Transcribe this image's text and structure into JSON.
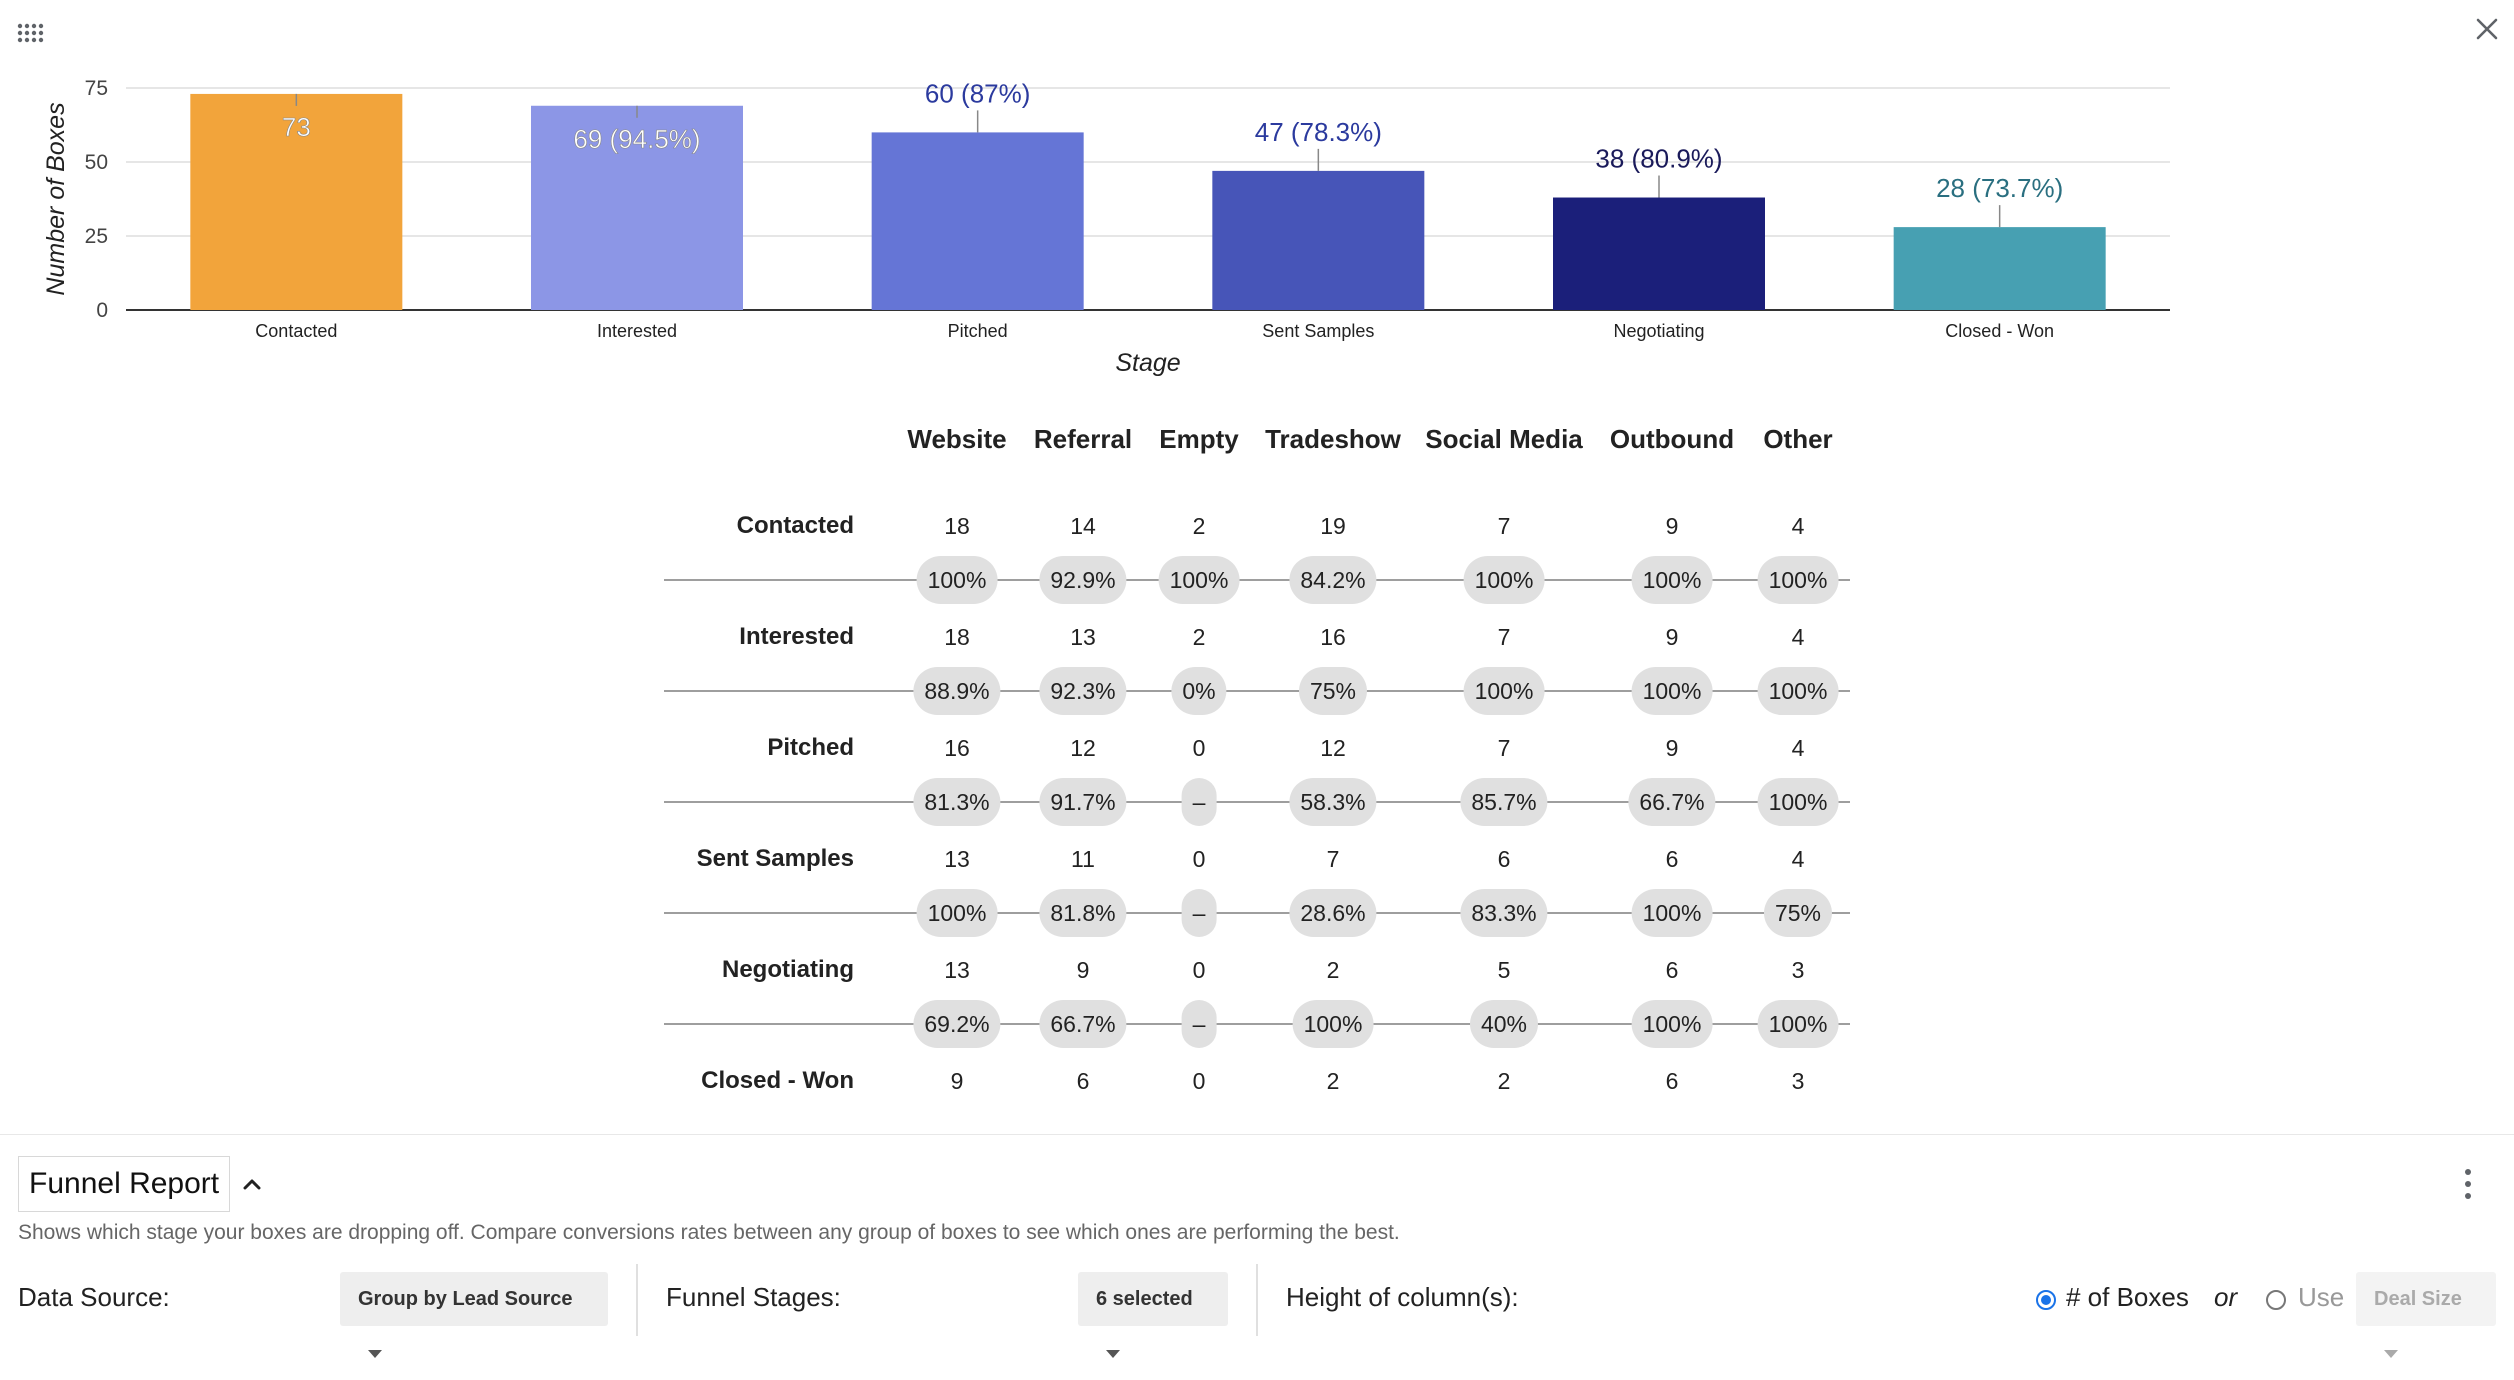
{
  "icons": {
    "apps": "apps-grid-icon",
    "close": "close-icon",
    "collapse": "chevron-up-icon",
    "more": "more-vert-icon"
  },
  "chart_data": {
    "type": "bar",
    "title": "",
    "xlabel": "Stage",
    "ylabel": "Number of Boxes",
    "ylim": [
      0,
      75
    ],
    "yticks": [
      0,
      25,
      50,
      75
    ],
    "categories": [
      "Contacted",
      "Interested",
      "Pitched",
      "Sent Samples",
      "Negotiating",
      "Closed - Won"
    ],
    "values": [
      73,
      69,
      60,
      47,
      38,
      28
    ],
    "labels": [
      "73",
      "69 (94.5%)",
      "60 (87%)",
      "47 (78.3%)",
      "38 (80.9%)",
      "28 (73.7%)"
    ],
    "colors": [
      "#f2a43b",
      "#8c96e6",
      "#6575d6",
      "#4755b8",
      "#1b1f7a",
      "#47a0b2"
    ],
    "label_colors": [
      "#ffffff",
      "#ffffff",
      "#2b3a9e",
      "#2b3a9e",
      "#1a1a5a",
      "#2a6f80"
    ],
    "label_inside": [
      true,
      true,
      false,
      false,
      false,
      false
    ]
  },
  "matrix": {
    "columns": [
      "Website",
      "Referral",
      "Empty",
      "Tradeshow",
      "Social Media",
      "Outbound",
      "Other"
    ],
    "rows": [
      {
        "stage": "Contacted",
        "counts": [
          "18",
          "14",
          "2",
          "19",
          "7",
          "9",
          "4"
        ],
        "rates": [
          "100%",
          "92.9%",
          "100%",
          "84.2%",
          "100%",
          "100%",
          "100%"
        ]
      },
      {
        "stage": "Interested",
        "counts": [
          "18",
          "13",
          "2",
          "16",
          "7",
          "9",
          "4"
        ],
        "rates": [
          "88.9%",
          "92.3%",
          "0%",
          "75%",
          "100%",
          "100%",
          "100%"
        ]
      },
      {
        "stage": "Pitched",
        "counts": [
          "16",
          "12",
          "0",
          "12",
          "7",
          "9",
          "4"
        ],
        "rates": [
          "81.3%",
          "91.7%",
          "–",
          "58.3%",
          "85.7%",
          "66.7%",
          "100%"
        ]
      },
      {
        "stage": "Sent Samples",
        "counts": [
          "13",
          "11",
          "0",
          "7",
          "6",
          "6",
          "4"
        ],
        "rates": [
          "100%",
          "81.8%",
          "–",
          "28.6%",
          "83.3%",
          "100%",
          "75%"
        ]
      },
      {
        "stage": "Negotiating",
        "counts": [
          "13",
          "9",
          "0",
          "2",
          "5",
          "6",
          "3"
        ],
        "rates": [
          "69.2%",
          "66.7%",
          "–",
          "100%",
          "40%",
          "100%",
          "100%"
        ]
      },
      {
        "stage": "Closed - Won",
        "counts": [
          "9",
          "6",
          "0",
          "2",
          "2",
          "6",
          "3"
        ],
        "rates": []
      }
    ]
  },
  "report": {
    "title": "Funnel Report",
    "description": "Shows which stage your boxes are dropping off. Compare conversions rates between any group of boxes to see which ones are performing the best."
  },
  "controls": {
    "data_source_label": "Data Source:",
    "data_source_value": "Group by Lead Source",
    "funnel_stages_label": "Funnel Stages:",
    "funnel_stages_value": "6 selected",
    "height_label": "Height of column(s):",
    "option_boxes": "# of Boxes",
    "or_text": "or",
    "option_use": "Use",
    "deal_size_value": "Deal Size",
    "selected_option": "# of Boxes"
  }
}
